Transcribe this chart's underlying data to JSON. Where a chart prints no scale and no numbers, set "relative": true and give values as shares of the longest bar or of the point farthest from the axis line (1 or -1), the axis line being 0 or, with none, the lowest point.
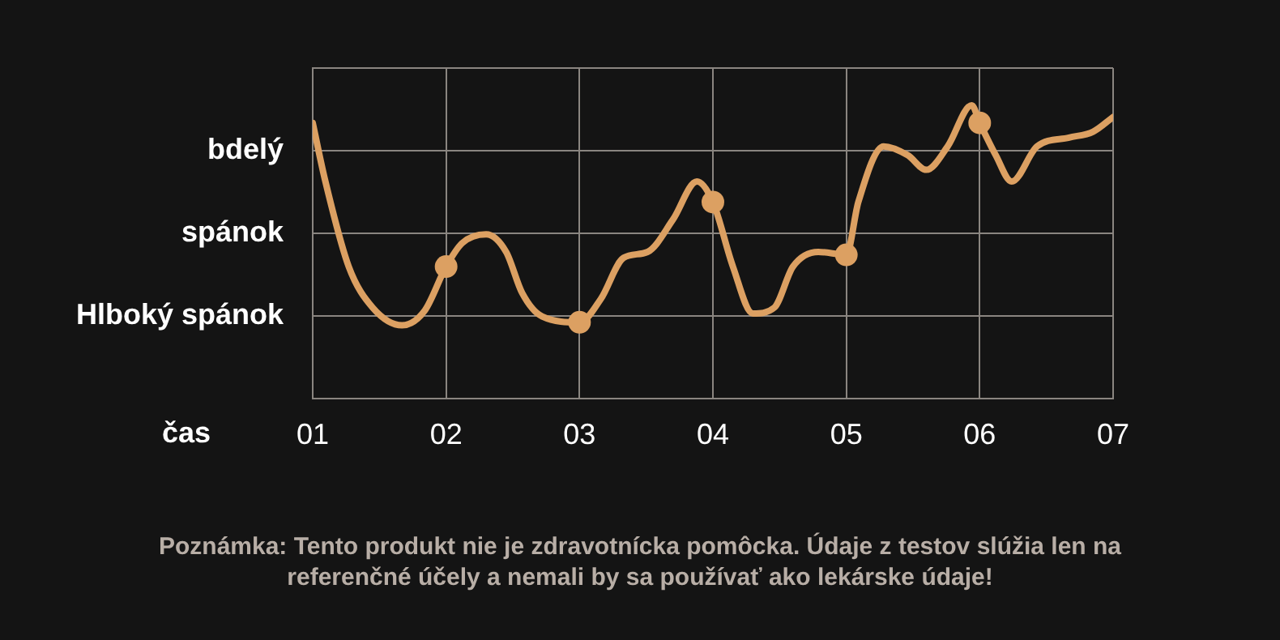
{
  "chart_data": {
    "type": "line",
    "relative": true,
    "xlabel": "čas",
    "xlim": [
      1,
      7
    ],
    "xticks": [
      {
        "value": 1,
        "label": "01"
      },
      {
        "value": 2,
        "label": "02"
      },
      {
        "value": 3,
        "label": "03"
      },
      {
        "value": 4,
        "label": "04"
      },
      {
        "value": 5,
        "label": "05"
      },
      {
        "value": 6,
        "label": "06"
      },
      {
        "value": 7,
        "label": "07"
      }
    ],
    "grid": true,
    "legend": false,
    "series": [
      {
        "color": "#dca062",
        "marker": "none",
        "x": [
          1,
          1.09,
          1.27,
          1.45,
          1.67,
          1.84,
          2.0,
          2.12,
          2.3,
          2.45,
          2.57,
          2.72,
          3.0,
          3.16,
          3.33,
          3.51,
          3.7,
          3.88,
          4.0,
          4.15,
          4.3,
          4.46,
          4.6,
          4.79,
          5.0,
          5.09,
          5.28,
          5.46,
          5.6,
          5.76,
          5.94,
          6.0,
          6.12,
          6.24,
          6.43,
          6.67,
          6.85,
          7.0
        ],
        "values": [
          0.94,
          0.75,
          0.45,
          0.31,
          0.25,
          0.3,
          0.45,
          0.53,
          0.56,
          0.5,
          0.36,
          0.28,
          0.26,
          0.34,
          0.48,
          0.5,
          0.61,
          0.74,
          0.67,
          0.45,
          0.29,
          0.31,
          0.45,
          0.5,
          0.49,
          0.67,
          0.86,
          0.83,
          0.78,
          0.86,
          1,
          0.94,
          0.83,
          0.74,
          0.86,
          0.89,
          0.91,
          0.96
        ]
      },
      {
        "type": "scatter",
        "color": "#dca062",
        "marker": "circle",
        "x": [
          2,
          3,
          4,
          5,
          6
        ],
        "values": [
          0.45,
          0.26,
          0.67,
          0.49,
          0.94
        ]
      }
    ],
    "annotations": [
      "bdelý",
      "spánok",
      "Hlboký spánok",
      "Poznámka: Tento produkt nie je zdravotnícka pomôcka. Údaje z testov slúžia len na referenčné účely a nemali by sa používať ako lekárske údaje!"
    ]
  }
}
